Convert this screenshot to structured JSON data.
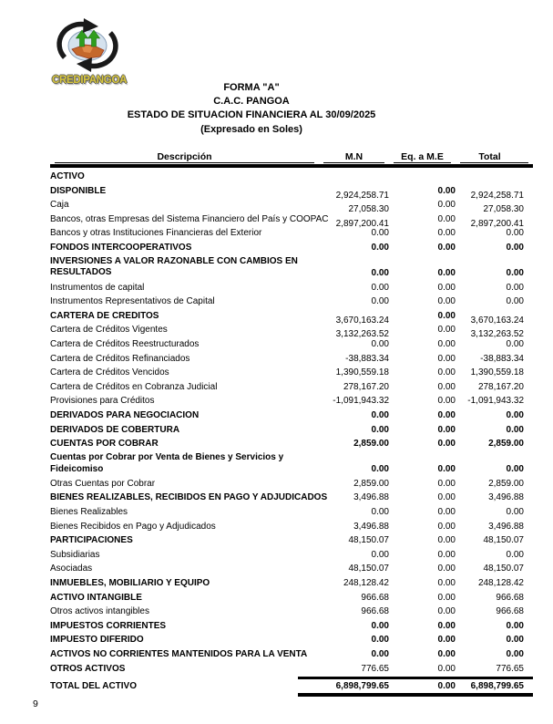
{
  "logo": {
    "name": "CREDIPANGOA",
    "colors": {
      "text_yellow": "#d8c63e",
      "arrow_black": "#1a1a1a",
      "growth_green": "#2f9e1e",
      "handshake_brown": "#c4682c",
      "globe_blue": "#d5e2ee"
    }
  },
  "header": {
    "form": "FORMA \"A\"",
    "entity": "C.A.C. PANGOA",
    "statement": "ESTADO DE SITUACION FINANCIERA AL 30/09/2025",
    "currency": "(Expresado en Soles)"
  },
  "table": {
    "columns": [
      "Descripción",
      "M.N",
      "Eq. a M.E",
      "Total"
    ],
    "rows": [
      {
        "label": "ACTIVO",
        "mn": "",
        "eq": "",
        "total": "",
        "b": true
      },
      {
        "label": "DISPONIBLE",
        "mn": "2,924,258.71",
        "eq": "0.00",
        "total": "2,924,258.71",
        "b": true,
        "eb": true,
        "off": true
      },
      {
        "label": "Caja",
        "mn": "27,058.30",
        "eq": "0.00",
        "total": "27,058.30",
        "off": true
      },
      {
        "label": "Bancos, otras Empresas del Sistema Financiero del País y COOPAC",
        "mn": "2,897,200.41",
        "eq": "0.00",
        "total": "2,897,200.41",
        "off": true
      },
      {
        "label": "Bancos y otras Instituciones Financieras del Exterior",
        "mn": "0.00",
        "eq": "0.00",
        "total": "0.00"
      },
      {
        "label": "FONDOS INTERCOOPERATIVOS",
        "mn": "0.00",
        "eq": "0.00",
        "total": "0.00",
        "b": true,
        "vb": true
      },
      {
        "label": "INVERSIONES A VALOR RAZONABLE CON CAMBIOS EN",
        "label2": "RESULTADOS",
        "mn": "0.00",
        "eq": "0.00",
        "total": "0.00",
        "b": true,
        "vb": true
      },
      {
        "label": "Instrumentos de capital",
        "mn": "0.00",
        "eq": "0.00",
        "total": "0.00"
      },
      {
        "label": "Instrumentos Representativos de Capital",
        "mn": "0.00",
        "eq": "0.00",
        "total": "0.00"
      },
      {
        "label": "CARTERA DE CREDITOS",
        "mn": "3,670,163.24",
        "eq": "0.00",
        "total": "3,670,163.24",
        "b": true,
        "eb": true,
        "off": true
      },
      {
        "label": "Cartera de Créditos Vigentes",
        "mn": "3,132,263.52",
        "eq": "0.00",
        "total": "3,132,263.52",
        "off": true
      },
      {
        "label": "Cartera de Créditos Reestructurados",
        "mn": "0.00",
        "eq": "0.00",
        "total": "0.00"
      },
      {
        "label": "Cartera de Créditos Refinanciados",
        "mn": "-38,883.34",
        "eq": "0.00",
        "total": "-38,883.34"
      },
      {
        "label": "Cartera de Créditos Vencidos",
        "mn": "1,390,559.18",
        "eq": "0.00",
        "total": "1,390,559.18"
      },
      {
        "label": "Cartera de Créditos en Cobranza Judicial",
        "mn": "278,167.20",
        "eq": "0.00",
        "total": "278,167.20"
      },
      {
        "label": "Provisiones para Créditos",
        "mn": "-1,091,943.32",
        "eq": "0.00",
        "total": "-1,091,943.32"
      },
      {
        "label": "DERIVADOS PARA NEGOCIACION",
        "mn": "0.00",
        "eq": "0.00",
        "total": "0.00",
        "b": true,
        "vb": true
      },
      {
        "label": "DERIVADOS DE COBERTURA",
        "mn": "0.00",
        "eq": "0.00",
        "total": "0.00",
        "b": true,
        "vb": true
      },
      {
        "label": "CUENTAS POR COBRAR",
        "mn": "2,859.00",
        "eq": "0.00",
        "total": "2,859.00",
        "b": true,
        "vb": true
      },
      {
        "label": "Cuentas por Cobrar por Venta de Bienes y Servicios y",
        "label2": "Fideicomiso",
        "mn": "0.00",
        "eq": "0.00",
        "total": "0.00",
        "b": true,
        "vb": true
      },
      {
        "label": "Otras Cuentas por Cobrar",
        "mn": "2,859.00",
        "eq": "0.00",
        "total": "2,859.00"
      },
      {
        "label": "BIENES REALIZABLES, RECIBIDOS EN PAGO Y ADJUDICADOS",
        "mn": "3,496.88",
        "eq": "0.00",
        "total": "3,496.88",
        "b": true
      },
      {
        "label": "Bienes Realizables",
        "mn": "0.00",
        "eq": "0.00",
        "total": "0.00"
      },
      {
        "label": "Bienes Recibidos en Pago y Adjudicados",
        "mn": "3,496.88",
        "eq": "0.00",
        "total": "3,496.88"
      },
      {
        "label": "PARTICIPACIONES",
        "mn": "48,150.07",
        "eq": "0.00",
        "total": "48,150.07",
        "b": true
      },
      {
        "label": "Subsidiarias",
        "mn": "0.00",
        "eq": "0.00",
        "total": "0.00"
      },
      {
        "label": "Asociadas",
        "mn": "48,150.07",
        "eq": "0.00",
        "total": "48,150.07"
      },
      {
        "label": "INMUEBLES, MOBILIARIO Y EQUIPO",
        "mn": "248,128.42",
        "eq": "0.00",
        "total": "248,128.42",
        "b": true
      },
      {
        "label": "ACTIVO INTANGIBLE",
        "mn": "966.68",
        "eq": "0.00",
        "total": "966.68",
        "b": true
      },
      {
        "label": "Otros activos intangibles",
        "mn": "966.68",
        "eq": "0.00",
        "total": "966.68"
      },
      {
        "label": "IMPUESTOS CORRIENTES",
        "mn": "0.00",
        "eq": "0.00",
        "total": "0.00",
        "b": true,
        "vb": true
      },
      {
        "label": "IMPUESTO DIFERIDO",
        "mn": "0.00",
        "eq": "0.00",
        "total": "0.00",
        "b": true,
        "vb": true
      },
      {
        "label": "ACTIVOS NO CORRIENTES MANTENIDOS PARA LA VENTA",
        "mn": "0.00",
        "eq": "0.00",
        "total": "0.00",
        "b": true,
        "vb": true
      },
      {
        "label": "OTROS ACTIVOS",
        "mn": "776.65",
        "eq": "0.00",
        "total": "776.65",
        "b": true
      },
      {
        "label": "TOTAL DEL ACTIVO",
        "mn": "6,898,799.65",
        "eq": "0.00",
        "total": "6,898,799.65",
        "b": true,
        "vb": true,
        "tl": true
      }
    ]
  },
  "page_number": "9"
}
